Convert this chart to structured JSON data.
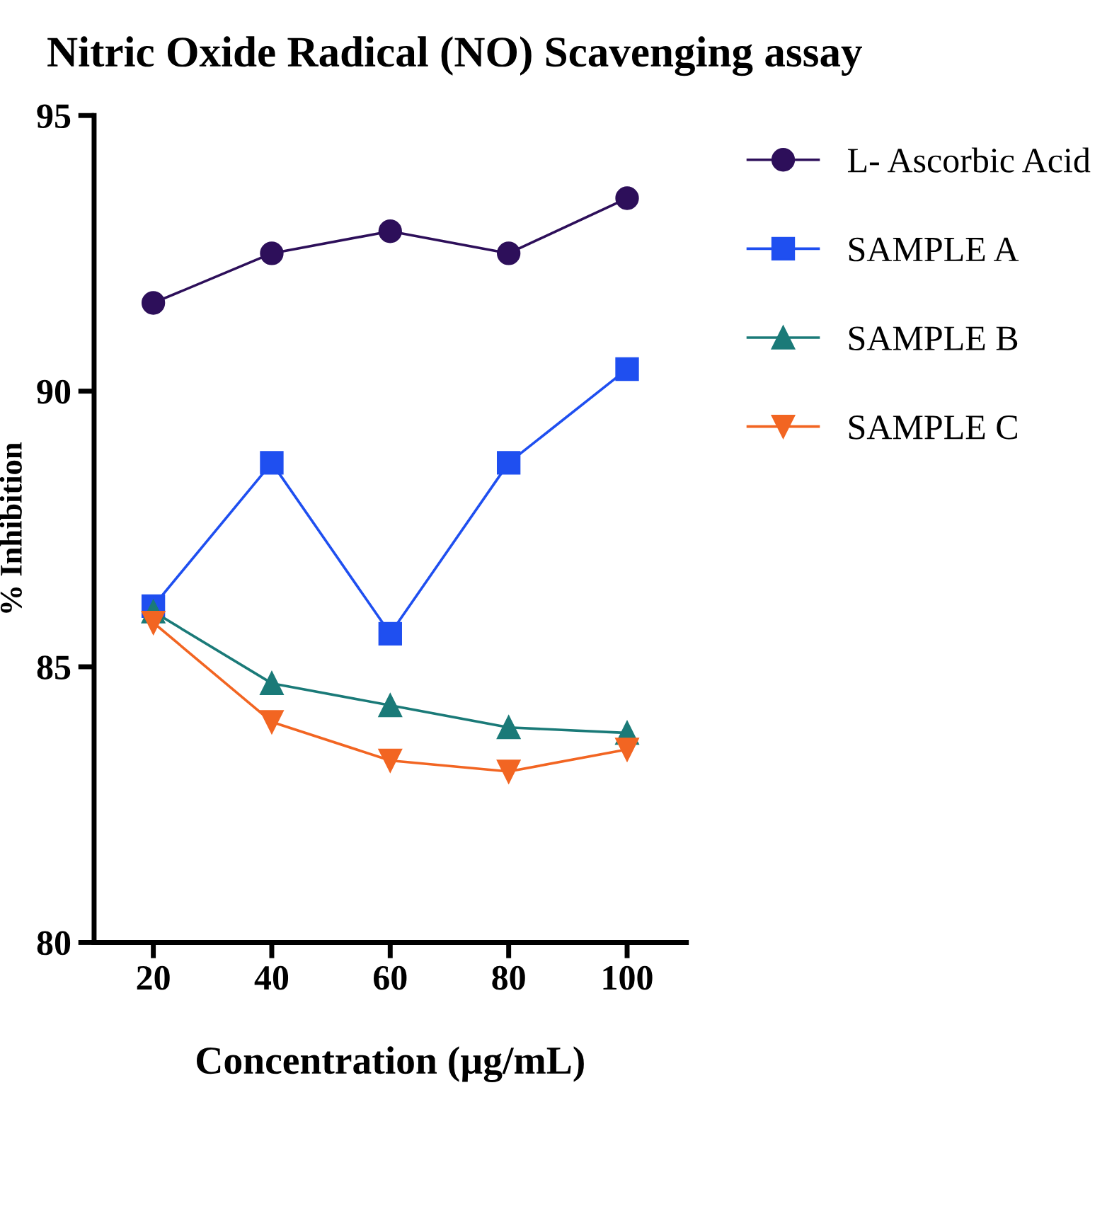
{
  "chart_data": {
    "type": "line",
    "title": "Nitric Oxide Radical (NO) Scavenging assay",
    "xlabel": "Concentration (µg/mL)",
    "ylabel": "% Inhibition",
    "categories": [
      "20",
      "40",
      "60",
      "80",
      "100"
    ],
    "series": [
      {
        "name": "L- Ascorbic Acid",
        "color": "#2d0f5a",
        "marker": "circle",
        "values": [
          91.6,
          92.5,
          92.9,
          92.5,
          93.5
        ]
      },
      {
        "name": "SAMPLE A",
        "color": "#1f4ff0",
        "marker": "square",
        "values": [
          86.1,
          88.7,
          85.6,
          88.7,
          90.4
        ]
      },
      {
        "name": "SAMPLE B",
        "color": "#1a7a78",
        "marker": "triangle",
        "values": [
          86.0,
          84.7,
          84.3,
          83.9,
          83.8
        ]
      },
      {
        "name": "SAMPLE C",
        "color": "#f26522",
        "marker": "triangle_down",
        "values": [
          85.8,
          84.0,
          83.3,
          83.1,
          83.5
        ]
      }
    ],
    "ylim": [
      80,
      95
    ],
    "yticks": [
      80,
      85,
      90,
      95
    ],
    "grid": false,
    "legend": "right"
  }
}
